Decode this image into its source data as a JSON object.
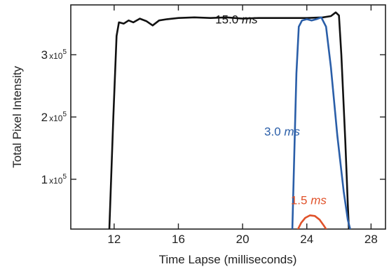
{
  "chart_data": {
    "type": "line",
    "title": "",
    "xlabel": "Time Lapse (milliseconds)",
    "ylabel": "Total Pixel Intensity",
    "xlim": [
      9.3,
      28.9
    ],
    "ylim": [
      20000,
      380000
    ],
    "grid": false,
    "x_ticks": [
      {
        "value": 12,
        "label": "12"
      },
      {
        "value": 16,
        "label": "16"
      },
      {
        "value": 20,
        "label": "20"
      },
      {
        "value": 24,
        "label": "24"
      },
      {
        "value": 28,
        "label": "28"
      }
    ],
    "y_ticks": [
      {
        "value": 100000,
        "mantissa": "1",
        "times": "x10",
        "exp": "5"
      },
      {
        "value": 200000,
        "mantissa": "2",
        "times": "x10",
        "exp": "5"
      },
      {
        "value": 300000,
        "mantissa": "3",
        "times": "x10",
        "exp": "5"
      }
    ],
    "series": [
      {
        "name": "15.0 ms",
        "color": "#111111",
        "label": {
          "number": "15.0 ",
          "unit": "ms",
          "x": 18.3,
          "y": 350000
        },
        "points": [
          [
            11.7,
            20000
          ],
          [
            11.95,
            200000
          ],
          [
            12.15,
            330000
          ],
          [
            12.3,
            352000
          ],
          [
            12.6,
            350000
          ],
          [
            12.9,
            355000
          ],
          [
            13.2,
            352000
          ],
          [
            13.6,
            358000
          ],
          [
            14.0,
            354000
          ],
          [
            14.4,
            347000
          ],
          [
            14.8,
            355000
          ],
          [
            15.3,
            357000
          ],
          [
            16.0,
            359000
          ],
          [
            17.0,
            360000
          ],
          [
            18.0,
            359000
          ],
          [
            19.0,
            360000
          ],
          [
            20.0,
            358000
          ],
          [
            21.0,
            359000
          ],
          [
            22.0,
            359000
          ],
          [
            23.0,
            359000
          ],
          [
            24.0,
            359000
          ],
          [
            25.0,
            360000
          ],
          [
            25.5,
            362000
          ],
          [
            25.8,
            368000
          ],
          [
            26.0,
            363000
          ],
          [
            26.15,
            300000
          ],
          [
            26.4,
            160000
          ],
          [
            26.55,
            60000
          ],
          [
            26.62,
            20000
          ]
        ]
      },
      {
        "name": "3.0 ms",
        "color": "#2a5ea8",
        "label": {
          "number": "3.0 ",
          "unit": "ms",
          "x": 21.35,
          "y": 170000
        },
        "points": [
          [
            23.1,
            20000
          ],
          [
            23.2,
            120000
          ],
          [
            23.35,
            270000
          ],
          [
            23.5,
            345000
          ],
          [
            23.7,
            355000
          ],
          [
            24.0,
            357000
          ],
          [
            24.3,
            355000
          ],
          [
            24.6,
            357000
          ],
          [
            24.9,
            360000
          ],
          [
            25.2,
            345000
          ],
          [
            25.5,
            280000
          ],
          [
            25.9,
            170000
          ],
          [
            26.3,
            80000
          ],
          [
            26.55,
            35000
          ],
          [
            26.7,
            20000
          ]
        ]
      },
      {
        "name": "1.5 ms",
        "color": "#e0522a",
        "label": {
          "number": "1.5 ",
          "unit": "ms",
          "x": 23.0,
          "y": 60000
        },
        "points": [
          [
            23.45,
            20000
          ],
          [
            23.65,
            30000
          ],
          [
            23.9,
            38000
          ],
          [
            24.2,
            42000
          ],
          [
            24.5,
            41000
          ],
          [
            24.8,
            35000
          ],
          [
            25.05,
            26000
          ],
          [
            25.2,
            20000
          ]
        ]
      }
    ]
  }
}
